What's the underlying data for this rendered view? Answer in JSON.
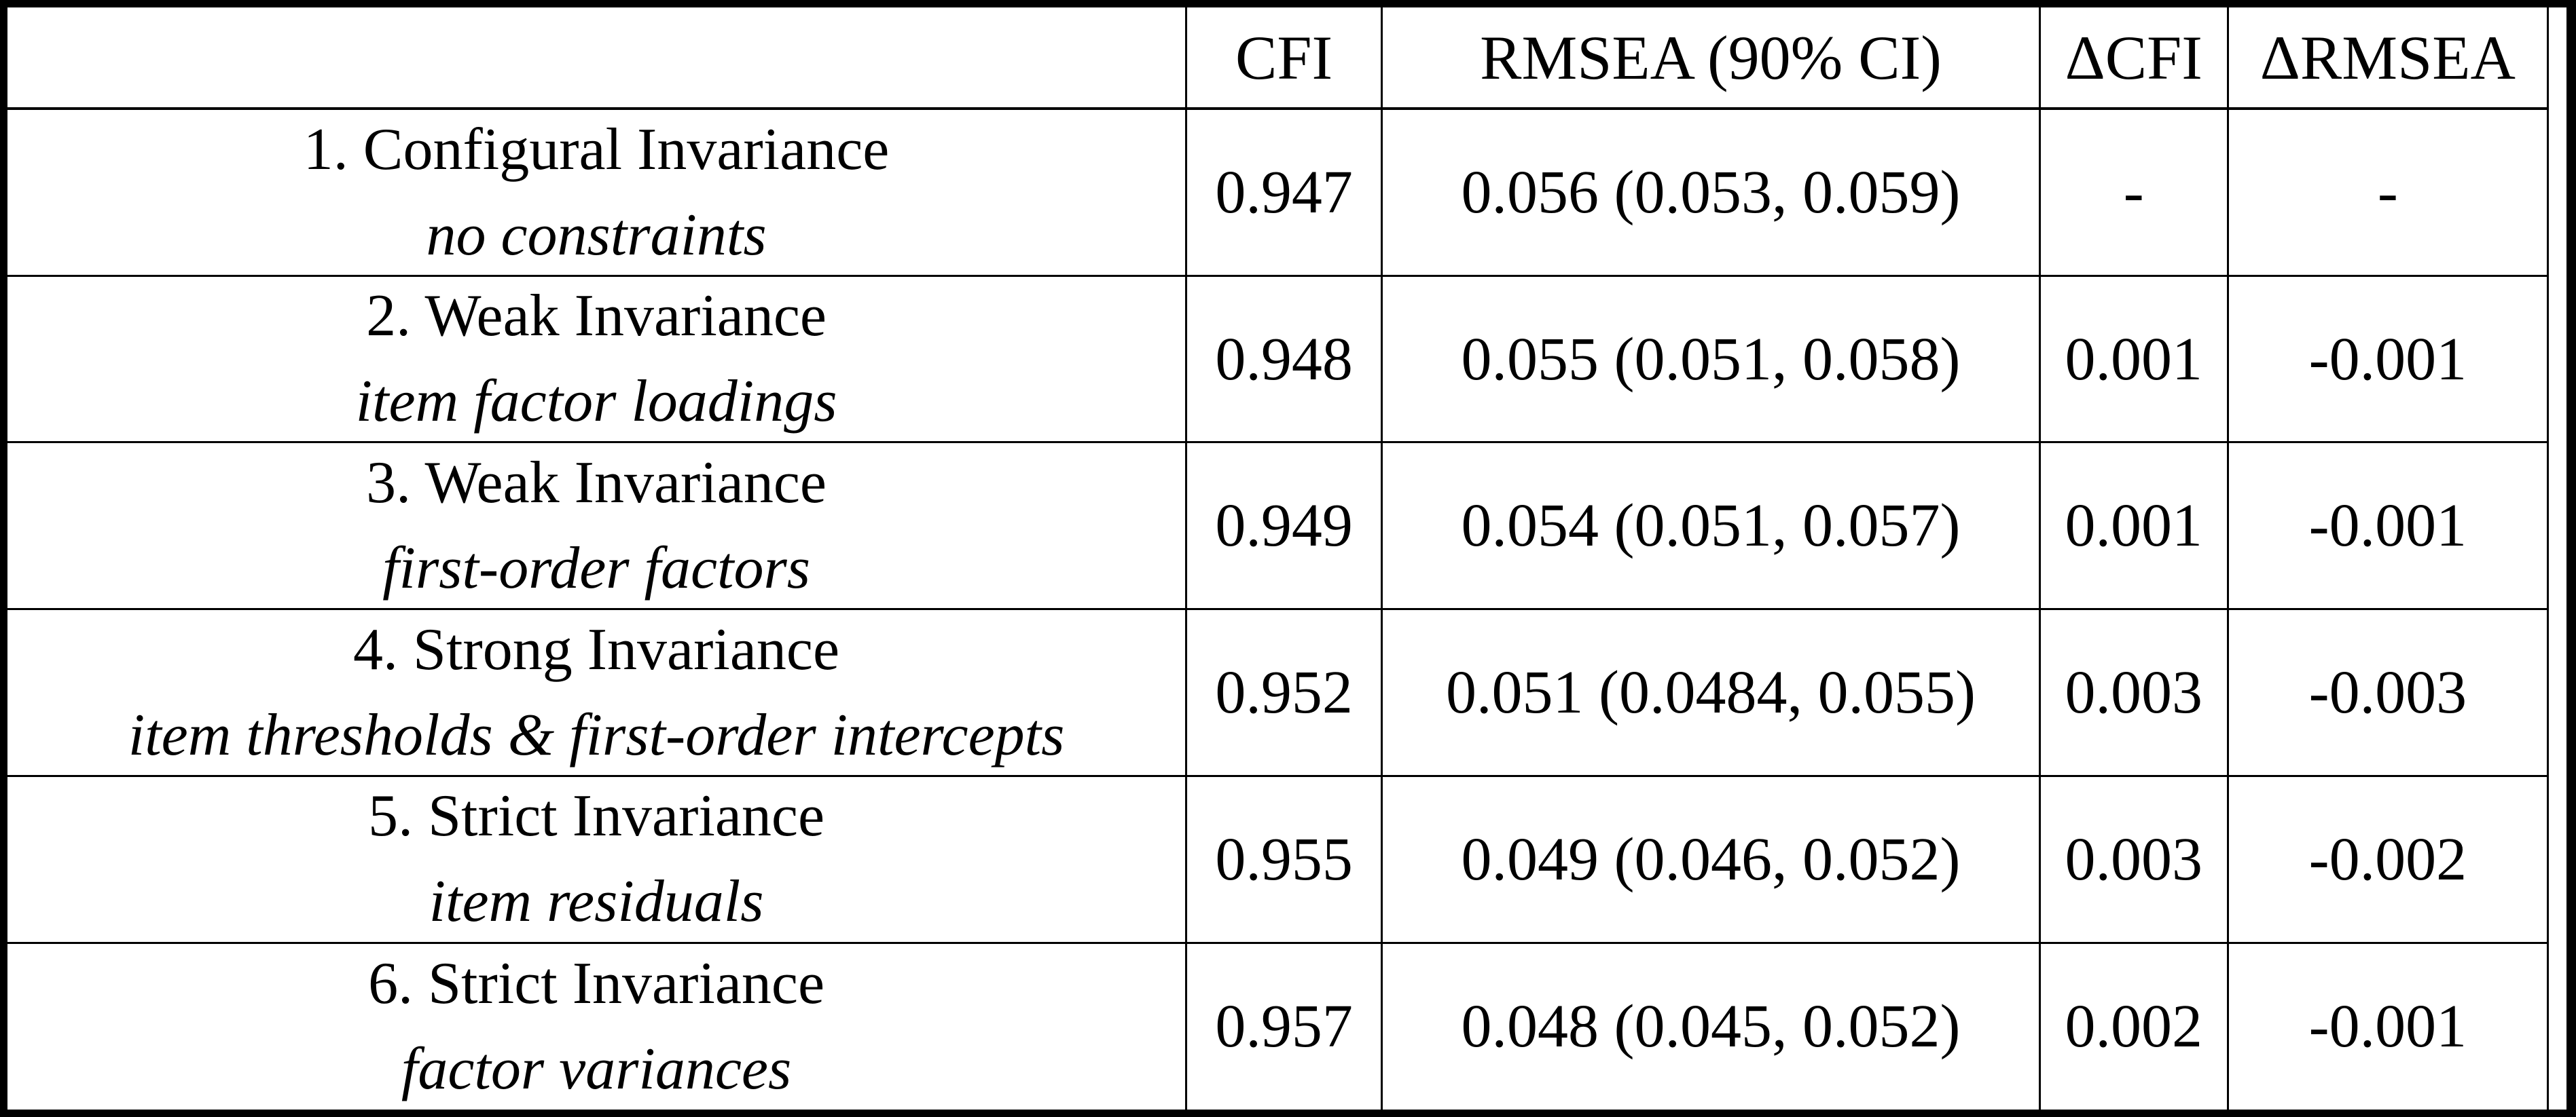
{
  "table": {
    "description": "Measurement invariance model fit indices table",
    "colors": {
      "border": "#000000",
      "background": "#ffffff",
      "text": "#000000"
    },
    "columns": [
      {
        "key": "model",
        "label": ""
      },
      {
        "key": "cfi",
        "label": "CFI"
      },
      {
        "key": "rmsea",
        "label": "RMSEA (90% CI)"
      },
      {
        "key": "dcfi",
        "label": "ΔCFI"
      },
      {
        "key": "drmsea",
        "label": "ΔRMSEA"
      }
    ],
    "rows": [
      {
        "model": "1. Configural Invariance",
        "constraints": "no constraints",
        "cfi": "0.947",
        "rmsea": "0.056 (0.053, 0.059)",
        "dcfi": "-",
        "drmsea": "-"
      },
      {
        "model": "2. Weak Invariance",
        "constraints": "item factor loadings",
        "cfi": "0.948",
        "rmsea": "0.055 (0.051, 0.058)",
        "dcfi": "0.001",
        "drmsea": "-0.001"
      },
      {
        "model": "3. Weak Invariance",
        "constraints": "first-order factors",
        "cfi": "0.949",
        "rmsea": "0.054 (0.051, 0.057)",
        "dcfi": "0.001",
        "drmsea": "-0.001"
      },
      {
        "model": "4. Strong Invariance",
        "constraints": "item thresholds & first-order intercepts",
        "cfi": "0.952",
        "rmsea": "0.051 (0.0484, 0.055)",
        "dcfi": "0.003",
        "drmsea": "-0.003"
      },
      {
        "model": "5. Strict Invariance",
        "constraints": "item residuals",
        "cfi": "0.955",
        "rmsea": "0.049 (0.046, 0.052)",
        "dcfi": "0.003",
        "drmsea": "-0.002"
      },
      {
        "model": "6. Strict Invariance",
        "constraints": "factor variances",
        "cfi": "0.957",
        "rmsea": "0.048 (0.045, 0.052)",
        "dcfi": "0.002",
        "drmsea": "-0.001"
      }
    ]
  }
}
